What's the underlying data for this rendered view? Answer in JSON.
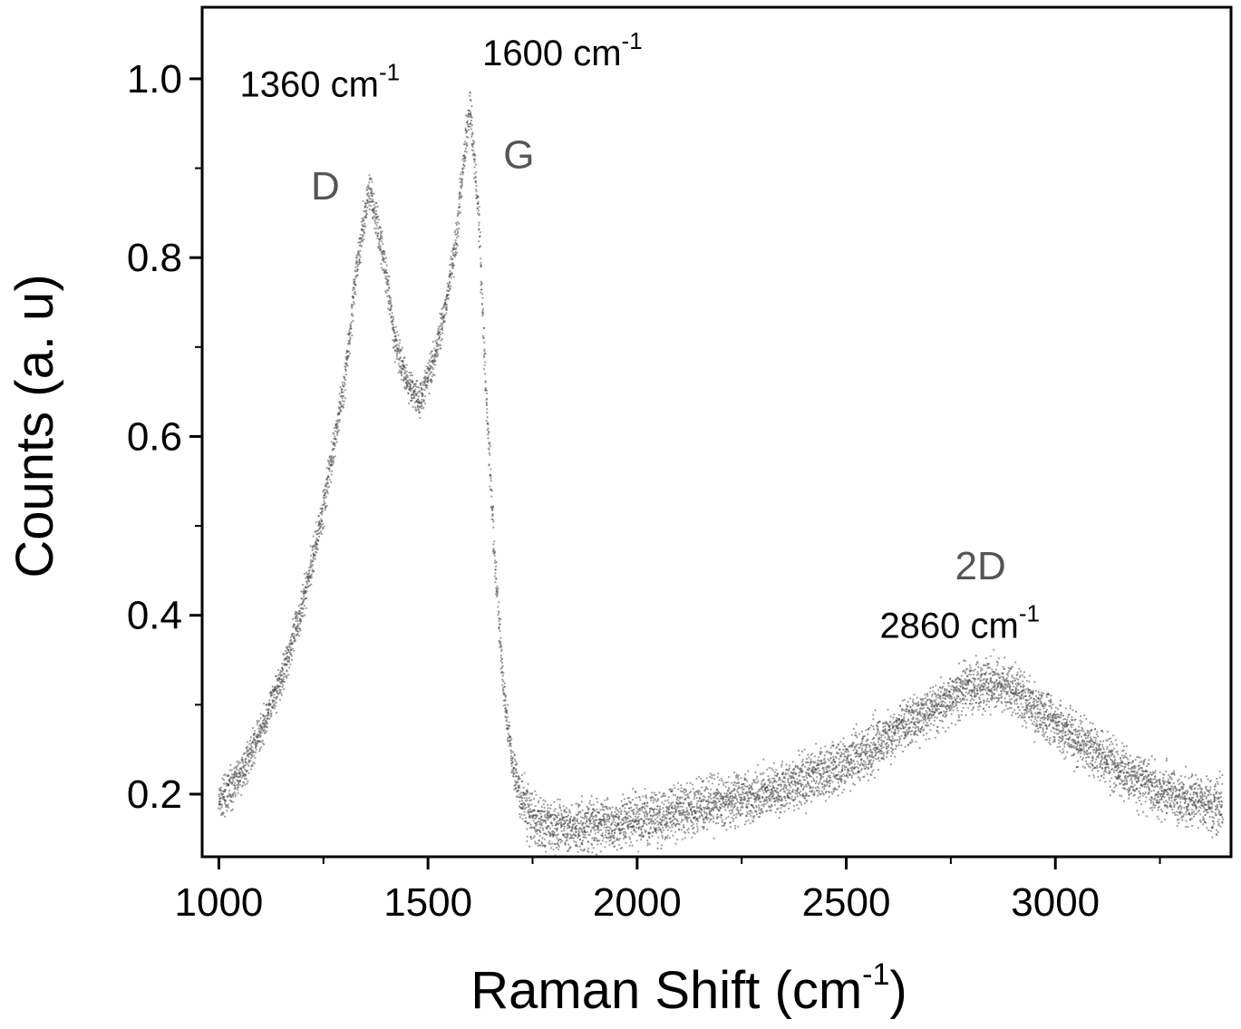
{
  "chart_data": {
    "type": "scatter",
    "title": "",
    "xlabel": "Raman Shift (cm",
    "xlabel_sup": "-1",
    "xlabel_tail": ")",
    "ylabel": "Counts (a. u)",
    "xlim": [
      960,
      3420
    ],
    "ylim": [
      0.13,
      1.08
    ],
    "xticks": [
      1000,
      1500,
      2000,
      2500,
      3000
    ],
    "xtick_labels": [
      "1000",
      "1500",
      "2000",
      "2500",
      "3000"
    ],
    "xminor_ticks": [
      1250,
      1750,
      2250,
      2750,
      3250
    ],
    "yticks": [
      0.2,
      0.4,
      0.6,
      0.8,
      1.0
    ],
    "ytick_labels": [
      "0.2",
      "0.4",
      "0.6",
      "0.8",
      "1.0"
    ],
    "yminor_ticks": [
      0.3,
      0.5,
      0.7,
      0.9
    ],
    "grid": false,
    "legend": "none",
    "marker_color": "#4a4a4a",
    "series": [
      {
        "x": [
          1000,
          1050,
          1100,
          1150,
          1200,
          1250,
          1300,
          1330,
          1360,
          1390,
          1420,
          1450,
          1480,
          1510,
          1540,
          1570,
          1590,
          1600,
          1620,
          1640,
          1660,
          1680,
          1700,
          1720,
          1750,
          1800,
          1900,
          2000,
          2100,
          2200,
          2300,
          2400,
          2500,
          2600,
          2700,
          2800,
          2860,
          2900,
          3000,
          3100,
          3200,
          3300,
          3400
        ],
        "y": [
          0.19,
          0.22,
          0.27,
          0.33,
          0.41,
          0.52,
          0.66,
          0.79,
          0.88,
          0.81,
          0.71,
          0.66,
          0.64,
          0.68,
          0.74,
          0.83,
          0.93,
          0.97,
          0.86,
          0.64,
          0.46,
          0.32,
          0.24,
          0.2,
          0.17,
          0.165,
          0.165,
          0.17,
          0.18,
          0.19,
          0.2,
          0.215,
          0.235,
          0.265,
          0.295,
          0.32,
          0.325,
          0.315,
          0.28,
          0.245,
          0.215,
          0.195,
          0.185
        ]
      }
    ],
    "annotations": [
      {
        "id": "d-pos",
        "text": "1360 cm",
        "sup": "-1",
        "x": 1050,
        "y": 0.98
      },
      {
        "id": "g-pos",
        "text": "1600 cm",
        "sup": "-1",
        "x": 1630,
        "y": 1.015
      },
      {
        "id": "d-label",
        "text": "D",
        "x": 1220,
        "y": 0.865
      },
      {
        "id": "g-label",
        "text": "G",
        "x": 1680,
        "y": 0.9
      },
      {
        "id": "2d-label",
        "text": "2D",
        "x": 2760,
        "y": 0.44
      },
      {
        "id": "2d-pos",
        "text": "2860 cm",
        "sup": "-1",
        "x": 2580,
        "y": 0.375
      }
    ]
  }
}
